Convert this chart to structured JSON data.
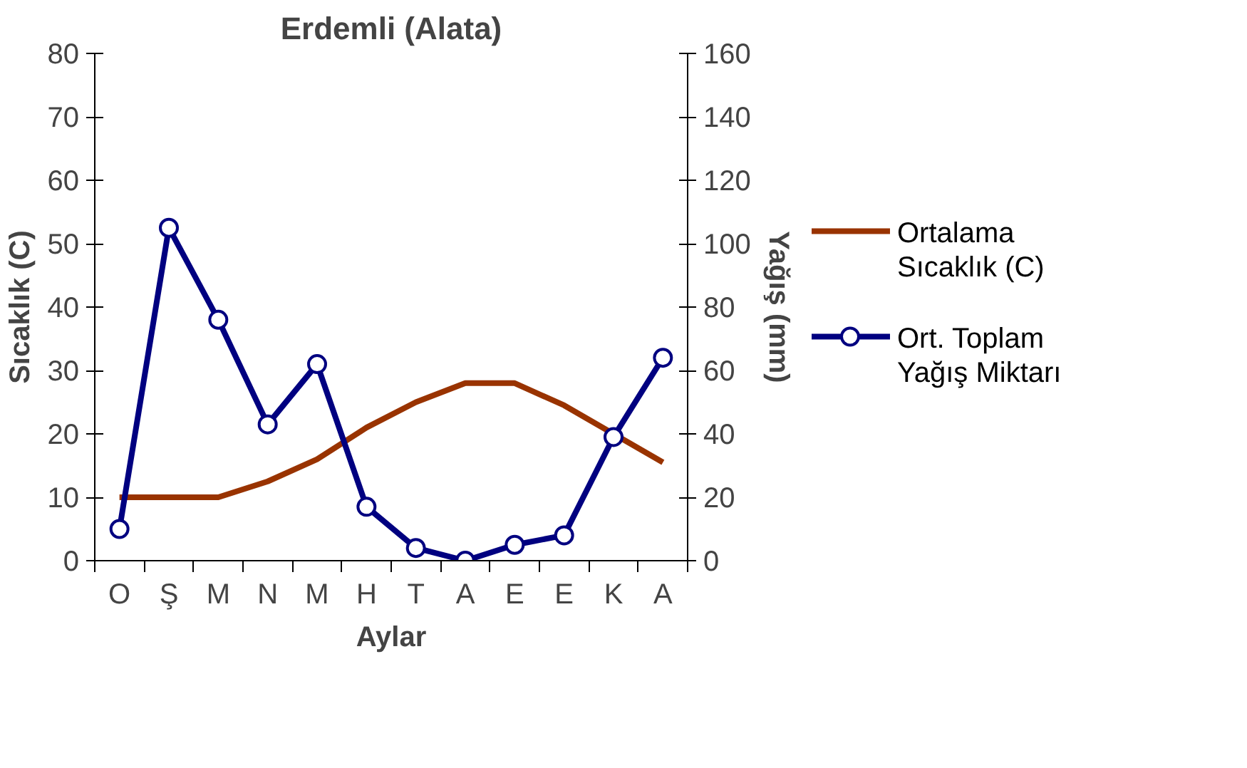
{
  "chart_data": {
    "type": "line",
    "title": "Erdemli (Alata)",
    "xlabel": "Aylar",
    "ylabel": "Sıcaklık (C)",
    "y2label": "Yağış (mm)",
    "categories": [
      "O",
      "Ş",
      "M",
      "N",
      "M",
      "H",
      "T",
      "A",
      "E",
      "E",
      "K",
      "A"
    ],
    "series": [
      {
        "name": "Ortalama Sıcaklık (C)",
        "color": "#993300",
        "marker": "none",
        "values": [
          10,
          10,
          10,
          12.5,
          16,
          21,
          25,
          28,
          28,
          24.5,
          20,
          15.5
        ]
      },
      {
        "name": "Ort. Toplam Yağış Miktarı",
        "color": "#000080",
        "marker": "circle",
        "axis": "y2",
        "values": [
          10,
          105,
          76,
          43,
          62,
          17,
          4,
          0,
          5,
          8,
          39,
          64
        ]
      }
    ],
    "ylim": [
      0,
      80
    ],
    "yticks": [
      0,
      10,
      20,
      30,
      40,
      50,
      60,
      70,
      80
    ],
    "y2lim": [
      0,
      160
    ],
    "y2ticks": [
      0,
      20,
      40,
      60,
      80,
      100,
      120,
      140,
      160
    ],
    "grid": false,
    "legend": "right"
  }
}
